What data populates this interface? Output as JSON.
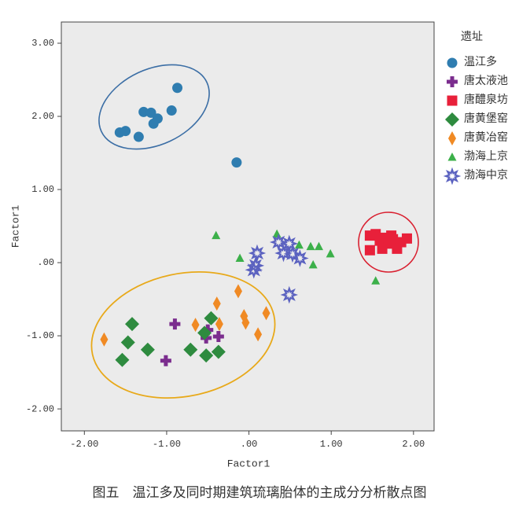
{
  "chart_data": {
    "type": "scatter",
    "caption": "图五　温江多及同时期建筑琉璃胎体的主成分分析散点图",
    "xlabel": "Factor1",
    "ylabel": "Factor1",
    "legend_title": "遗址",
    "legend": "right",
    "grid": false,
    "xlim": [
      -2.28,
      2.25
    ],
    "ylim": [
      -2.3,
      3.29
    ],
    "xticks": [
      {
        "value": -2,
        "label": "-2.00"
      },
      {
        "value": -1,
        "label": "-1.00"
      },
      {
        "value": 0,
        "label": ".00"
      },
      {
        "value": 1,
        "label": "1.00"
      },
      {
        "value": 2,
        "label": "2.00"
      }
    ],
    "yticks": [
      {
        "value": 3,
        "label": "3.00"
      },
      {
        "value": 2,
        "label": "2.00"
      },
      {
        "value": 1,
        "label": "1.00"
      },
      {
        "value": 0,
        "label": ".00"
      },
      {
        "value": -1,
        "label": "-1.00"
      },
      {
        "value": -2,
        "label": "-2.00"
      }
    ],
    "series": [
      {
        "name": "温江多",
        "color": "#2f7db0",
        "marker": "circle",
        "x": [
          -1.57,
          -1.5,
          -1.34,
          -1.28,
          -1.19,
          -1.16,
          -1.11,
          -0.94,
          -0.87,
          -0.15
        ],
        "values": [
          1.78,
          1.8,
          1.72,
          2.06,
          2.05,
          1.9,
          1.97,
          2.08,
          2.39,
          1.37
        ]
      },
      {
        "name": "唐太液池",
        "color": "#7b2d8e",
        "marker": "cross",
        "x": [
          -0.9,
          -1.01,
          -0.52,
          -0.5,
          -0.37
        ],
        "values": [
          -0.84,
          -1.34,
          -1.03,
          -0.92,
          -1.01
        ]
      },
      {
        "name": "唐醴泉坊",
        "color": "#e8203a",
        "marker": "square",
        "x": [
          1.47,
          1.54,
          1.59,
          1.66,
          1.7,
          1.75,
          1.8,
          1.85,
          1.92,
          1.47,
          1.62,
          1.73
        ],
        "values": [
          0.37,
          0.39,
          0.3,
          0.34,
          0.26,
          0.32,
          0.19,
          0.28,
          0.33,
          0.17,
          0.19,
          0.37
        ]
      },
      {
        "name": "唐黄堡窑",
        "color": "#2e8b3f",
        "marker": "diamond",
        "x": [
          -1.42,
          -1.47,
          -1.54,
          -1.23,
          -0.71,
          -0.54,
          -0.46,
          -0.52,
          -0.37
        ],
        "values": [
          -0.84,
          -1.09,
          -1.33,
          -1.19,
          -1.19,
          -0.96,
          -0.76,
          -1.27,
          -1.22
        ]
      },
      {
        "name": "唐黄冶窑",
        "color": "#f08a24",
        "marker": "thin-diamond",
        "x": [
          -1.76,
          -0.65,
          -0.39,
          -0.36,
          -0.13,
          -0.06,
          -0.04,
          0.11,
          0.21
        ],
        "values": [
          -1.05,
          -0.85,
          -0.56,
          -0.84,
          -0.39,
          -0.73,
          -0.82,
          -0.98,
          -0.69
        ]
      },
      {
        "name": "渤海上京",
        "color": "#3cb04a",
        "marker": "triangle",
        "x": [
          -0.4,
          -0.11,
          0.34,
          0.61,
          0.75,
          0.85,
          0.99,
          0.78,
          1.54
        ],
        "values": [
          0.37,
          0.06,
          0.39,
          0.24,
          0.22,
          0.22,
          0.12,
          -0.03,
          -0.25
        ]
      },
      {
        "name": "渤海中京",
        "color": "#5b62c0",
        "marker": "star",
        "x": [
          0.1,
          0.08,
          0.06,
          0.36,
          0.42,
          0.49,
          0.53,
          0.62,
          0.49
        ],
        "values": [
          0.13,
          -0.04,
          -0.1,
          0.28,
          0.13,
          0.26,
          0.12,
          0.06,
          -0.44
        ]
      }
    ]
  }
}
